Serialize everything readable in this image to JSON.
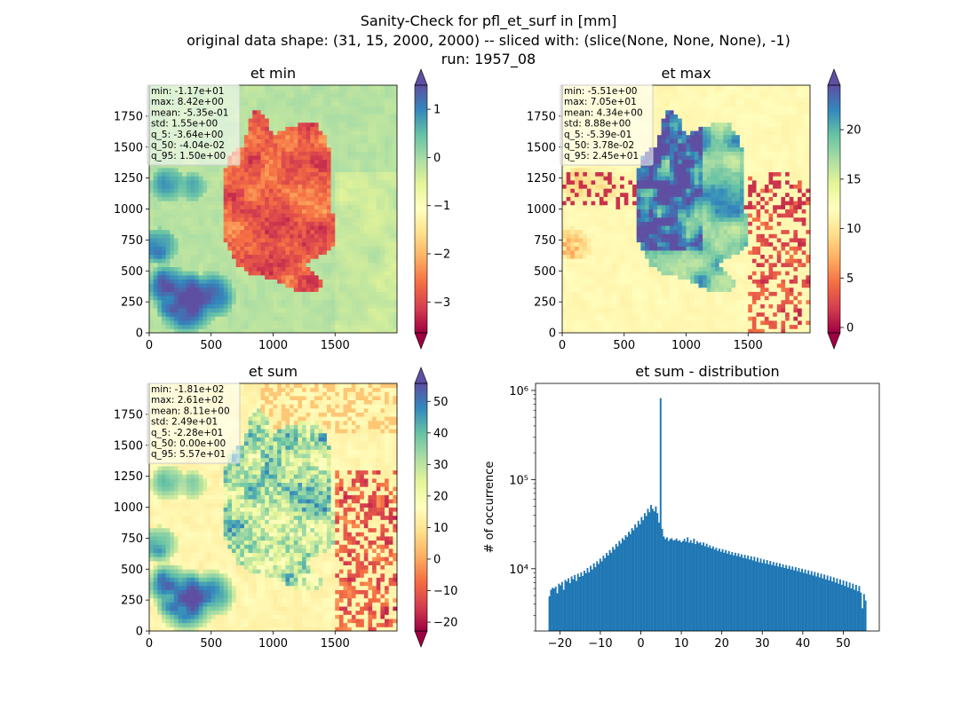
{
  "suptitle": [
    "Sanity-Check for pfl_et_surf in [mm]",
    "original data shape: (31, 15, 2000, 2000) -- sliced with: (slice(None, None, None), -1)",
    "run: 1957_08"
  ],
  "colors": {
    "spectral": [
      "#9e0142",
      "#d53e4f",
      "#f46d43",
      "#fdae61",
      "#fee08b",
      "#ffffbf",
      "#e6f598",
      "#abdda4",
      "#66c2a5",
      "#3288bd",
      "#5e4fa2"
    ],
    "hist_bar": "#1f77b4",
    "stats_box_bg": "#ffffff",
    "stats_box_edge": "#cccccc"
  },
  "chart_data": [
    {
      "type": "heatmap",
      "title": "et min",
      "colormap": "Spectral",
      "x_ticks": [
        "0",
        "500",
        "1000",
        "1500"
      ],
      "y_ticks": [
        "0",
        "250",
        "500",
        "750",
        "1000",
        "1250",
        "1500",
        "1750"
      ],
      "xlim": [
        0,
        2000
      ],
      "ylim": [
        0,
        2000
      ],
      "colorbar": {
        "ticks": [
          "1",
          "0",
          "−1",
          "−2",
          "−3"
        ],
        "tick_values": [
          1,
          0,
          -1,
          -2,
          -3
        ],
        "range": [
          -3.64,
          1.5
        ],
        "extend": "both"
      },
      "stats": [
        "min: -1.17e+01",
        "max: 8.42e+00",
        "mean: -5.35e-01",
        "std: 1.55e+00",
        "q_5: -3.64e+00",
        "q_50: -4.04e-02",
        "q_95: 1.50e+00"
      ],
      "map_pattern": "germany_low"
    },
    {
      "type": "heatmap",
      "title": "et max",
      "colormap": "Spectral",
      "x_ticks": [
        "0",
        "500",
        "1000",
        "1500"
      ],
      "y_ticks": [
        "0",
        "250",
        "500",
        "750",
        "1000",
        "1250",
        "1500",
        "1750"
      ],
      "xlim": [
        0,
        2000
      ],
      "ylim": [
        0,
        2000
      ],
      "colorbar": {
        "ticks": [
          "20",
          "15",
          "10",
          "5",
          "0"
        ],
        "tick_values": [
          20,
          15,
          10,
          5,
          0
        ],
        "range": [
          -0.539,
          24.5
        ],
        "extend": "both"
      },
      "stats": [
        "min: -5.51e+00",
        "max: 7.05e+01",
        "mean: 4.34e+00",
        "std: 8.88e+00",
        "q_5: -5.39e-01",
        "q_50: 3.78e-02",
        "q_95: 2.45e+01"
      ],
      "map_pattern": "germany_high"
    },
    {
      "type": "heatmap",
      "title": "et sum",
      "colormap": "Spectral",
      "x_ticks": [
        "0",
        "500",
        "1000",
        "1500"
      ],
      "y_ticks": [
        "0",
        "250",
        "500",
        "750",
        "1000",
        "1250",
        "1500",
        "1750"
      ],
      "xlim": [
        0,
        2000
      ],
      "ylim": [
        0,
        2000
      ],
      "colorbar": {
        "ticks": [
          "50",
          "40",
          "30",
          "20",
          "10",
          "0",
          "−10",
          "−20"
        ],
        "tick_values": [
          50,
          40,
          30,
          20,
          10,
          0,
          -10,
          -20
        ],
        "range": [
          -22.8,
          55.7
        ],
        "extend": "both"
      },
      "stats": [
        "min: -1.81e+02",
        "max: 2.61e+02",
        "mean: 8.11e+00",
        "std: 2.49e+01",
        "q_5: -2.28e+01",
        "q_50: 0.00e+00",
        "q_95: 5.57e+01"
      ],
      "map_pattern": "germany_mixed"
    },
    {
      "type": "bar",
      "title": "et sum - distribution",
      "ylabel": "# of occurrence",
      "yscale": "log",
      "ylim": [
        2000,
        1200000
      ],
      "xlim": [
        -26.0,
        58.9
      ],
      "x_ticks": [
        "−20",
        "−10",
        "0",
        "10",
        "20",
        "30",
        "40",
        "50"
      ],
      "x_tick_values": [
        -20,
        -10,
        0,
        10,
        20,
        30,
        40,
        50
      ],
      "y_ticks": [
        "10⁴",
        "10⁵",
        "10⁶"
      ],
      "y_tick_values": [
        10000,
        100000,
        1000000
      ],
      "bin_range": [
        -22.8,
        55.7
      ],
      "bin_count": 200,
      "values": [
        4900,
        5800,
        6100,
        6000,
        6300,
        5300,
        6800,
        6500,
        7100,
        5800,
        7500,
        7200,
        7800,
        6900,
        8200,
        7600,
        8500,
        7300,
        8800,
        8100,
        9100,
        8300,
        9500,
        8900,
        10200,
        9100,
        10800,
        9800,
        11500,
        10400,
        12100,
        11300,
        13000,
        12100,
        14000,
        13100,
        15000,
        14100,
        16200,
        15100,
        17500,
        16400,
        19000,
        17800,
        20500,
        19200,
        22000,
        21000,
        23800,
        22800,
        26000,
        24500,
        28500,
        27000,
        31500,
        29000,
        34500,
        31500,
        38000,
        35000,
        42000,
        39000,
        47000,
        43000,
        52000,
        47000,
        44000,
        50000,
        42000,
        33000,
        820000,
        28000,
        23000,
        21500,
        22500,
        20500,
        21500,
        22000,
        20800,
        21000,
        21800,
        20500,
        20900,
        19800,
        20400,
        21600,
        20100,
        22500,
        19600,
        20900,
        19400,
        21700,
        18900,
        20400,
        19300,
        19800,
        18400,
        19700,
        17900,
        19100,
        17400,
        18300,
        16900,
        17800,
        16400,
        17200,
        15900,
        16800,
        15500,
        16600,
        15100,
        16200,
        14800,
        15800,
        14400,
        15400,
        14100,
        15100,
        13900,
        14900,
        13600,
        14500,
        13200,
        14300,
        13000,
        14100,
        12700,
        13800,
        12400,
        13600,
        12100,
        13300,
        11800,
        13000,
        11600,
        12700,
        11400,
        12500,
        11200,
        12200,
        11000,
        11900,
        10800,
        11700,
        10600,
        11500,
        10400,
        11200,
        10200,
        11000,
        10000,
        10800,
        9800,
        10600,
        9600,
        10400,
        9400,
        10200,
        9200,
        10000,
        9000,
        9800,
        8800,
        9600,
        8600,
        9400,
        8400,
        9200,
        8200,
        9000,
        8000,
        8800,
        7800,
        8600,
        7600,
        8400,
        7400,
        8200,
        7200,
        8000,
        7000,
        7800,
        6800,
        7600,
        6600,
        7400,
        6400,
        7200,
        6200,
        7000,
        6000,
        6800,
        5800,
        6600,
        5600,
        6400,
        5400,
        3600,
        5200,
        4400
      ]
    }
  ]
}
